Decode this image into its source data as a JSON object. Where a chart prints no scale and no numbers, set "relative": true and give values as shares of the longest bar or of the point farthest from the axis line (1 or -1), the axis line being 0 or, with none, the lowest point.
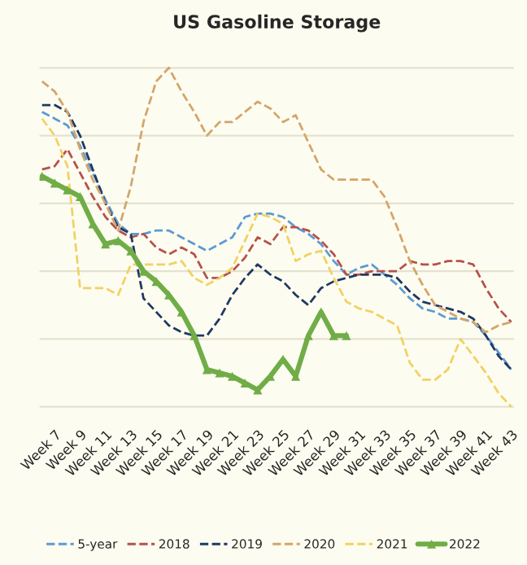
{
  "chart_data": {
    "type": "line",
    "title": "US Gasoline Storage",
    "relative": true,
    "grid": "y",
    "legend": "bottom",
    "categories": [
      null,
      "Week 7",
      null,
      "Week 9",
      null,
      "Week 11",
      null,
      "Week 13",
      null,
      "Week 15",
      null,
      "Week 17",
      null,
      "Week 19",
      null,
      "Week 21",
      null,
      "Week 23",
      null,
      "Week 25",
      null,
      "Week 27",
      null,
      "Week 29",
      null,
      "Week 31",
      null,
      "Week 33",
      null,
      "Week 35",
      null,
      "Week 37",
      null,
      "Week 39",
      null,
      "Week 41",
      null,
      "Week 43"
    ],
    "series": [
      {
        "name": "5-year",
        "color": "#5b9bd5",
        "line_style": "dashed",
        "marker": "none",
        "values": [
          0.87,
          0.85,
          0.83,
          0.77,
          0.69,
          0.61,
          0.54,
          0.51,
          0.51,
          0.52,
          0.52,
          0.5,
          0.48,
          0.46,
          0.48,
          0.5,
          0.56,
          0.57,
          0.57,
          0.56,
          0.53,
          0.51,
          0.48,
          0.43,
          0.39,
          0.41,
          0.42,
          0.39,
          0.36,
          0.32,
          0.29,
          0.28,
          0.26,
          0.26,
          0.25,
          0.21,
          0.16,
          0.11
        ]
      },
      {
        "name": "2018",
        "color": "#b5524a",
        "line_style": "dashed",
        "marker": "none",
        "values": [
          0.7,
          0.71,
          0.76,
          0.69,
          0.62,
          0.56,
          0.52,
          0.5,
          0.51,
          0.47,
          0.45,
          0.47,
          0.45,
          0.38,
          0.38,
          0.4,
          0.44,
          0.5,
          0.48,
          0.53,
          0.53,
          0.52,
          0.49,
          0.45,
          0.39,
          0.39,
          0.4,
          0.4,
          0.4,
          0.43,
          0.42,
          0.42,
          0.43,
          0.43,
          0.42,
          0.35,
          0.29,
          0.25
        ]
      },
      {
        "name": "2019",
        "color": "#1f3864",
        "line_style": "dashed",
        "marker": "none",
        "values": [
          0.89,
          0.89,
          0.87,
          0.8,
          0.7,
          0.6,
          0.53,
          0.51,
          0.32,
          0.28,
          0.24,
          0.22,
          0.21,
          0.21,
          0.26,
          0.33,
          0.38,
          0.42,
          0.39,
          0.37,
          0.33,
          0.3,
          0.35,
          0.37,
          0.38,
          0.39,
          0.39,
          0.39,
          0.38,
          0.34,
          0.31,
          0.3,
          0.29,
          0.28,
          0.26,
          0.21,
          0.15,
          0.11
        ]
      },
      {
        "name": "2020",
        "color": "#d4a56a",
        "line_style": "dashed",
        "marker": "none",
        "values": [
          0.96,
          0.93,
          0.87,
          0.76,
          0.67,
          0.6,
          0.52,
          0.65,
          0.84,
          0.96,
          1.0,
          0.93,
          0.87,
          0.8,
          0.84,
          0.84,
          0.87,
          0.9,
          0.88,
          0.84,
          0.86,
          0.78,
          0.7,
          0.67,
          0.67,
          0.67,
          0.67,
          0.62,
          0.53,
          0.43,
          0.36,
          0.3,
          0.28,
          0.26,
          0.25,
          0.22,
          0.24,
          0.25
        ]
      },
      {
        "name": "2021",
        "color": "#f0d264",
        "line_style": "dashed",
        "marker": "none",
        "values": [
          0.85,
          0.8,
          0.71,
          0.35,
          0.35,
          0.35,
          0.33,
          0.42,
          0.42,
          0.42,
          0.42,
          0.43,
          0.38,
          0.36,
          0.38,
          0.41,
          0.49,
          0.57,
          0.56,
          0.54,
          0.43,
          0.45,
          0.46,
          0.38,
          0.31,
          0.29,
          0.28,
          0.26,
          0.24,
          0.13,
          0.08,
          0.08,
          0.11,
          0.2,
          0.15,
          0.1,
          0.04,
          0.0
        ]
      },
      {
        "name": "2022",
        "color": "#70ad47",
        "line_style": "solid",
        "marker": "triangle",
        "values": [
          0.68,
          0.66,
          0.64,
          0.62,
          0.54,
          0.48,
          0.49,
          0.46,
          0.4,
          0.37,
          0.33,
          0.28,
          0.21,
          0.11,
          0.1,
          0.09,
          0.07,
          0.05,
          0.09,
          0.14,
          0.09,
          0.21,
          0.28,
          0.21,
          0.21,
          null,
          null,
          null,
          null,
          null,
          null,
          null,
          null,
          null,
          null,
          null,
          null,
          null
        ]
      }
    ]
  }
}
